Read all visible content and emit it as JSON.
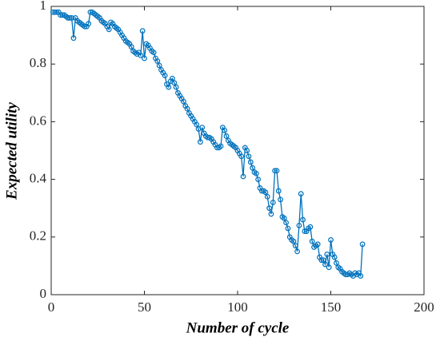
{
  "chart_data": {
    "type": "line",
    "x_label": "Number of cycle",
    "y_label": "Expected utility",
    "xlim": [
      0,
      200
    ],
    "xticks": [
      0,
      50,
      100,
      150,
      200
    ],
    "ylim": [
      0,
      1
    ],
    "yticks": [
      0,
      0.2,
      0.4,
      0.6,
      0.8,
      1
    ],
    "grid": false,
    "x": [
      1,
      2,
      3,
      4,
      5,
      6,
      7,
      8,
      9,
      10,
      11,
      12,
      13,
      14,
      15,
      16,
      17,
      18,
      19,
      20,
      21,
      22,
      23,
      24,
      25,
      26,
      27,
      28,
      29,
      30,
      31,
      32,
      33,
      34,
      35,
      36,
      37,
      38,
      39,
      40,
      41,
      42,
      43,
      44,
      45,
      46,
      47,
      48,
      49,
      50,
      51,
      52,
      53,
      54,
      55,
      56,
      57,
      58,
      59,
      60,
      61,
      62,
      63,
      64,
      65,
      66,
      67,
      68,
      69,
      70,
      71,
      72,
      73,
      74,
      75,
      76,
      77,
      78,
      79,
      80,
      81,
      82,
      83,
      84,
      85,
      86,
      87,
      88,
      89,
      90,
      91,
      92,
      93,
      94,
      95,
      96,
      97,
      98,
      99,
      100,
      101,
      102,
      103,
      104,
      105,
      106,
      107,
      108,
      109,
      110,
      111,
      112,
      113,
      114,
      115,
      116,
      117,
      118,
      119,
      120,
      121,
      122,
      123,
      124,
      125,
      126,
      127,
      128,
      129,
      130,
      131,
      132,
      133,
      134,
      135,
      136,
      137,
      138,
      139,
      140,
      141,
      142,
      143,
      144,
      145,
      146,
      147,
      148,
      149,
      150,
      151,
      152,
      153,
      154,
      155,
      156,
      157,
      158,
      159,
      160,
      161,
      162,
      163,
      164,
      165,
      166,
      167
    ],
    "series": [
      {
        "name": "Expected utility",
        "color": "#0072bd",
        "values": [
          0.98,
          0.98,
          0.98,
          0.98,
          0.97,
          0.97,
          0.97,
          0.965,
          0.96,
          0.96,
          0.96,
          0.89,
          0.96,
          0.95,
          0.945,
          0.94,
          0.935,
          0.93,
          0.93,
          0.94,
          0.98,
          0.98,
          0.975,
          0.97,
          0.965,
          0.96,
          0.95,
          0.945,
          0.94,
          0.93,
          0.92,
          0.945,
          0.94,
          0.93,
          0.925,
          0.92,
          0.91,
          0.9,
          0.89,
          0.88,
          0.875,
          0.87,
          0.86,
          0.845,
          0.84,
          0.835,
          0.84,
          0.83,
          0.915,
          0.82,
          0.87,
          0.865,
          0.855,
          0.845,
          0.84,
          0.82,
          0.81,
          0.795,
          0.78,
          0.77,
          0.76,
          0.73,
          0.72,
          0.74,
          0.75,
          0.735,
          0.72,
          0.7,
          0.69,
          0.68,
          0.67,
          0.655,
          0.645,
          0.63,
          0.62,
          0.61,
          0.6,
          0.59,
          0.575,
          0.53,
          0.58,
          0.56,
          0.55,
          0.545,
          0.545,
          0.54,
          0.53,
          0.52,
          0.51,
          0.51,
          0.515,
          0.58,
          0.57,
          0.55,
          0.535,
          0.525,
          0.52,
          0.515,
          0.51,
          0.5,
          0.49,
          0.48,
          0.41,
          0.51,
          0.5,
          0.48,
          0.46,
          0.44,
          0.425,
          0.42,
          0.4,
          0.37,
          0.36,
          0.36,
          0.355,
          0.34,
          0.3,
          0.28,
          0.32,
          0.43,
          0.43,
          0.36,
          0.33,
          0.27,
          0.265,
          0.25,
          0.23,
          0.2,
          0.19,
          0.185,
          0.17,
          0.15,
          0.24,
          0.35,
          0.26,
          0.22,
          0.22,
          0.23,
          0.235,
          0.185,
          0.165,
          0.17,
          0.175,
          0.13,
          0.12,
          0.12,
          0.105,
          0.14,
          0.095,
          0.19,
          0.14,
          0.13,
          0.11,
          0.095,
          0.09,
          0.08,
          0.075,
          0.07,
          0.07,
          0.075,
          0.07,
          0.065,
          0.075,
          0.07,
          0.075,
          0.065,
          0.175
        ]
      }
    ]
  }
}
